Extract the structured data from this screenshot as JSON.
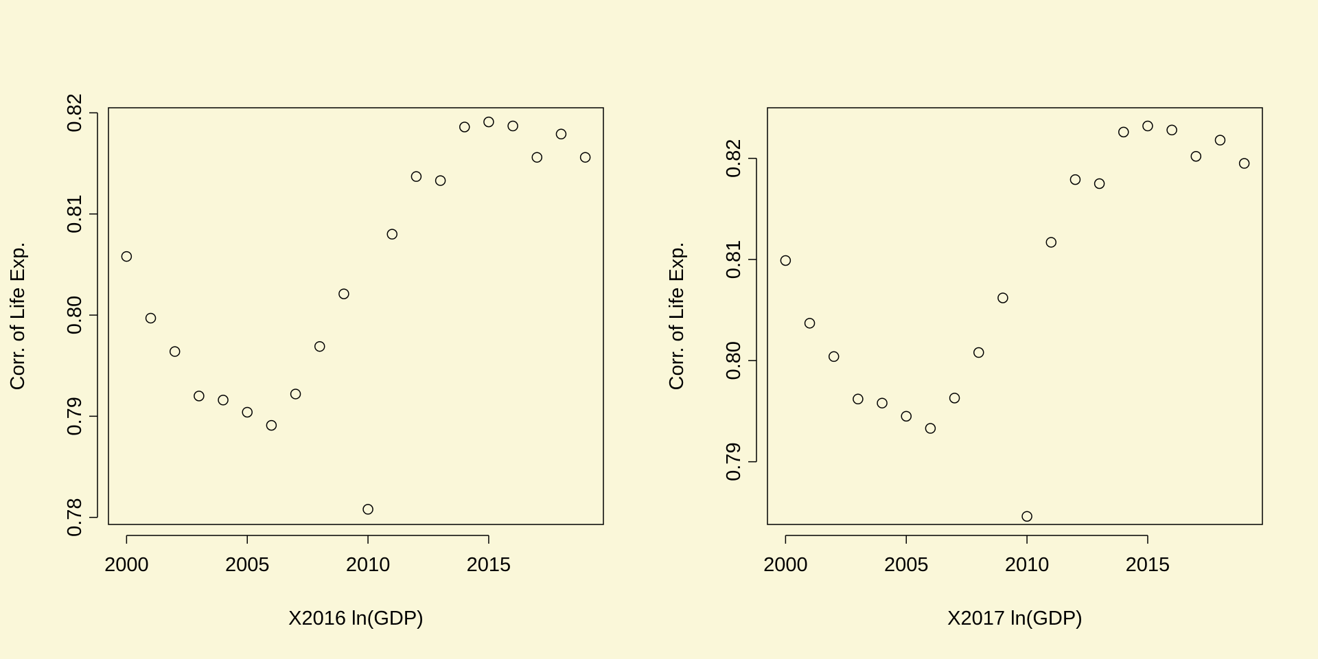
{
  "background": "#faf7d9",
  "chart_data": [
    {
      "type": "scatter",
      "title": "",
      "xlabel": "X2016 ln(GDP)",
      "ylabel": "Corr. of Life Exp.",
      "x": [
        2000,
        2001,
        2002,
        2003,
        2004,
        2005,
        2006,
        2007,
        2008,
        2009,
        2010,
        2011,
        2012,
        2013,
        2014,
        2015,
        2016,
        2017,
        2018,
        2019
      ],
      "y": [
        0.8058,
        0.7997,
        0.7964,
        0.792,
        0.7916,
        0.7904,
        0.7891,
        0.7922,
        0.7969,
        0.8021,
        0.7808,
        0.808,
        0.8137,
        0.8133,
        0.8186,
        0.8191,
        0.8187,
        0.8156,
        0.8179,
        0.8156
      ],
      "xlim": [
        1999.25,
        2019.75
      ],
      "ylim": [
        0.7793,
        0.8205
      ],
      "xticks": [
        2000,
        2005,
        2010,
        2015
      ],
      "xtick_labels": [
        "2000",
        "2005",
        "2010",
        "2015"
      ],
      "yticks": [
        0.78,
        0.79,
        0.8,
        0.81,
        0.82
      ],
      "ytick_labels": [
        "0.78",
        "0.79",
        "0.80",
        "0.81",
        "0.82"
      ],
      "marker": "open-circle",
      "grid": false,
      "legend": "none"
    },
    {
      "type": "scatter",
      "title": "",
      "xlabel": "X2017 ln(GDP)",
      "ylabel": "Corr. of Life Exp.",
      "x": [
        2000,
        2001,
        2002,
        2003,
        2004,
        2005,
        2006,
        2007,
        2008,
        2009,
        2010,
        2011,
        2012,
        2013,
        2014,
        2015,
        2016,
        2017,
        2018,
        2019
      ],
      "y": [
        0.8099,
        0.8037,
        0.8004,
        0.7962,
        0.7958,
        0.7945,
        0.7933,
        0.7963,
        0.8008,
        0.8062,
        0.7846,
        0.8117,
        0.8179,
        0.8175,
        0.8226,
        0.8232,
        0.8228,
        0.8202,
        0.8218,
        0.8195
      ],
      "xlim": [
        1999.25,
        2019.75
      ],
      "ylim": [
        0.7838,
        0.825
      ],
      "xticks": [
        2000,
        2005,
        2010,
        2015
      ],
      "xtick_labels": [
        "2000",
        "2005",
        "2010",
        "2015"
      ],
      "yticks": [
        0.79,
        0.8,
        0.81,
        0.82
      ],
      "ytick_labels": [
        "0.79",
        "0.80",
        "0.81",
        "0.82"
      ],
      "marker": "open-circle",
      "grid": false,
      "legend": "none"
    }
  ]
}
